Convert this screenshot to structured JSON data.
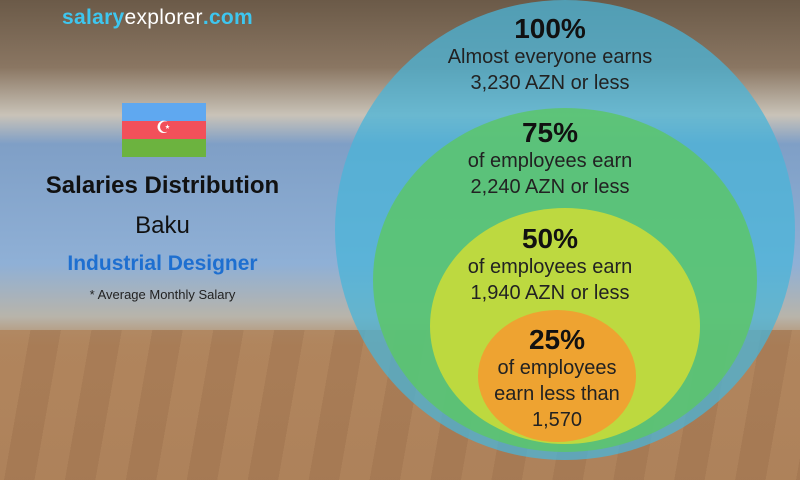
{
  "brand": {
    "part1": "salary",
    "part2": "explorer",
    "part3": ".com"
  },
  "header": {
    "title": "Salaries Distribution",
    "city": "Baku",
    "job": "Industrial Designer",
    "note": "* Average Monthly Salary"
  },
  "flag": {
    "country": "Azerbaijan",
    "colors": [
      "#5fa8f0",
      "#f2505a",
      "#6cb33f"
    ]
  },
  "tiers": [
    {
      "percent": "100%",
      "line1": "Almost everyone earns",
      "line2": "3,230 AZN or less",
      "color": "#4ab4d8"
    },
    {
      "percent": "75%",
      "line1": "of employees earn",
      "line2": "2,240 AZN or less",
      "color": "#5cc66a"
    },
    {
      "percent": "50%",
      "line1": "of employees earn",
      "line2": "1,940 AZN or less",
      "color": "#c8dc3a"
    },
    {
      "percent": "25%",
      "line1": "of employees",
      "line2": "earn less than",
      "line3": "1,570",
      "color": "#f0a030"
    }
  ]
}
